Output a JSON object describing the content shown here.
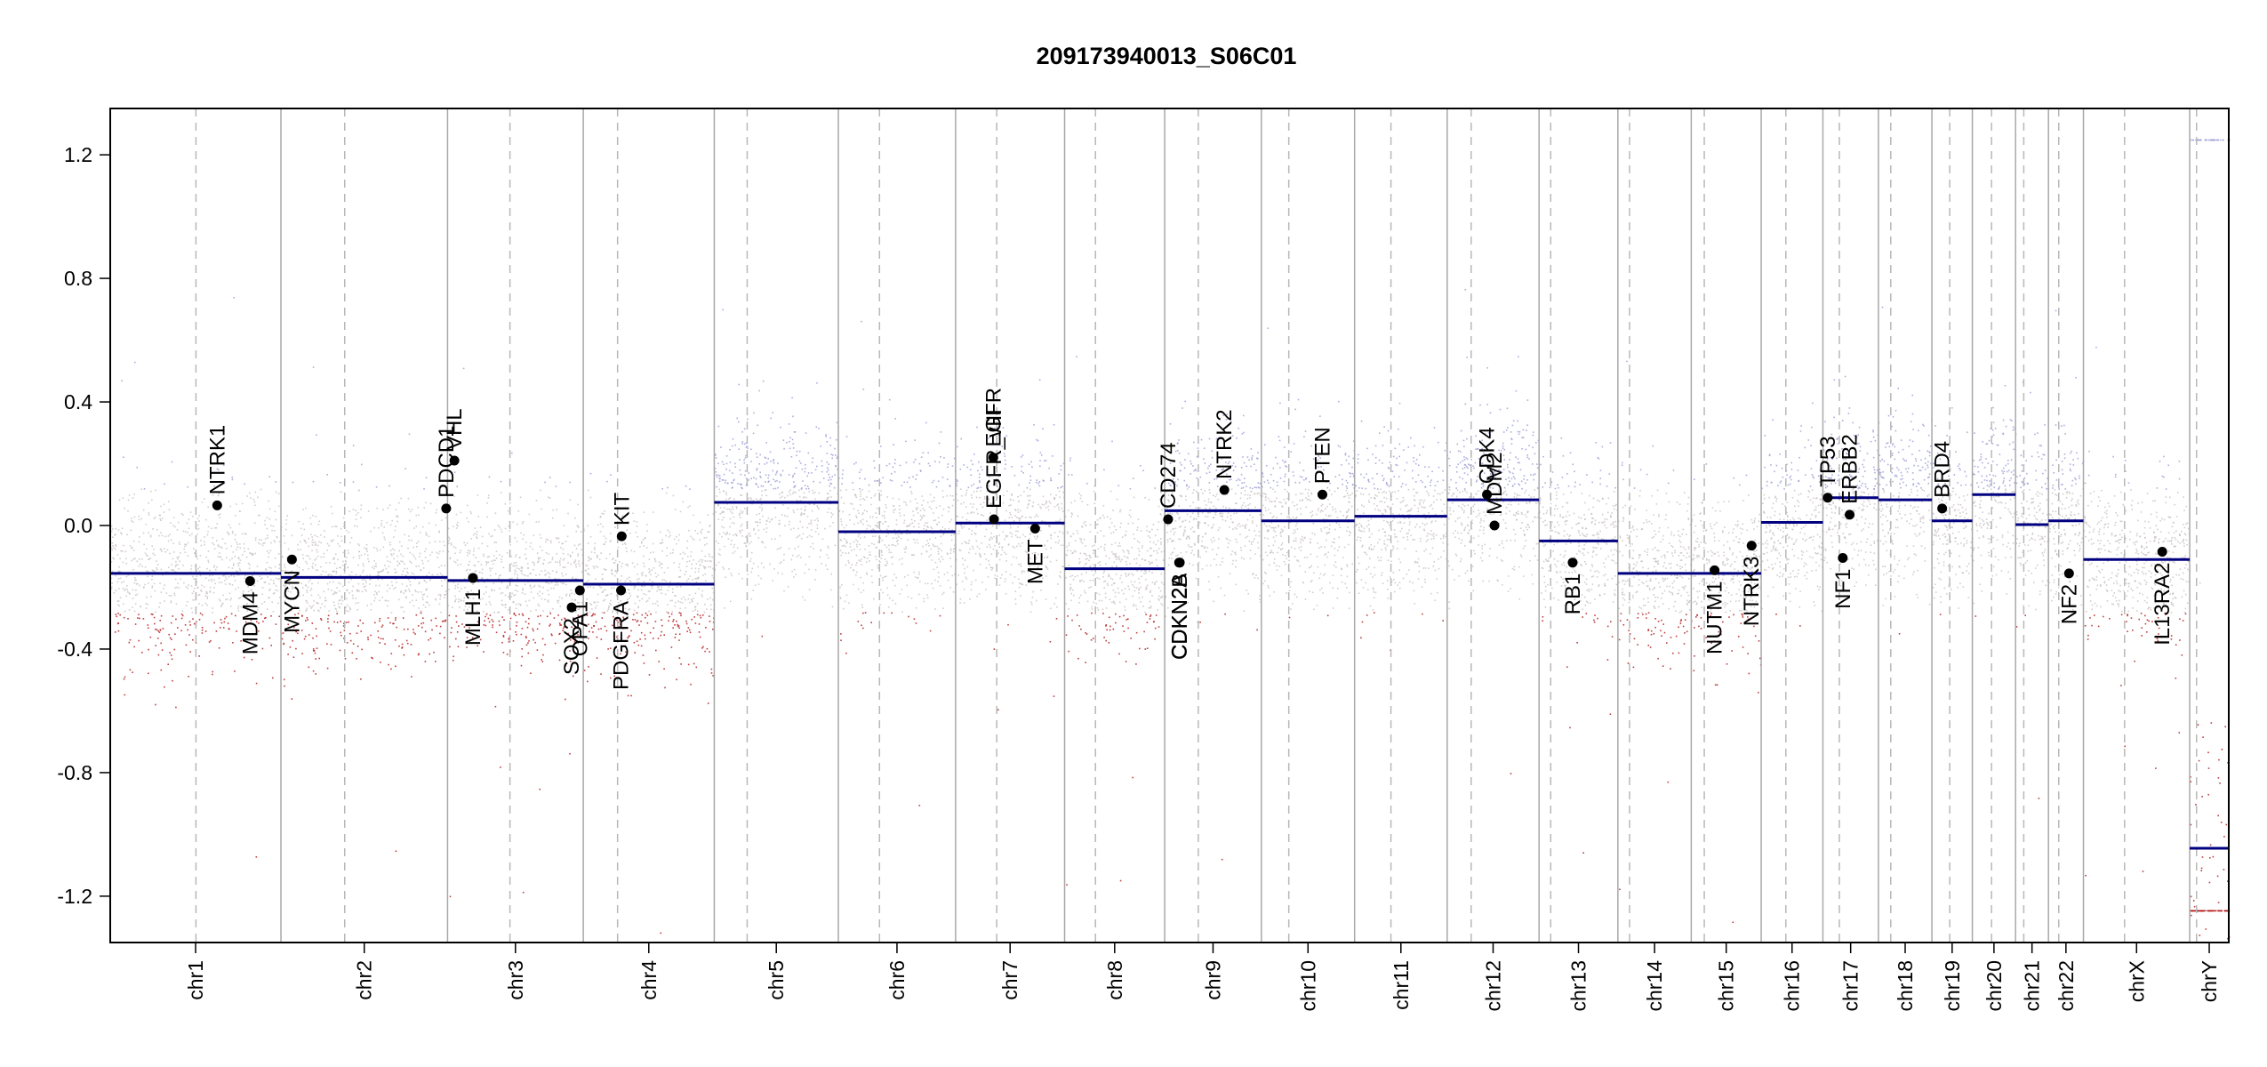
{
  "chart_data": {
    "type": "scatter",
    "title": "209173940013_S06C01",
    "xlabel": "",
    "ylabel": "",
    "ylim": [
      -1.35,
      1.35
    ],
    "yticks": [
      "-1.2",
      "-0.8",
      "-0.4",
      "0.0",
      "0.4",
      "0.8",
      "1.2"
    ],
    "colors": {
      "segment": "#000080",
      "gain_points": "#9a9ad6",
      "loss_points": "#b01010",
      "neutral_points": "#c8c0c0",
      "chr_boundary": "#a8a8a8",
      "centromere": "#b8b8b8",
      "gene_point": "#000000"
    },
    "chromosomes": [
      {
        "name": "chr1",
        "length": 249,
        "centromere": 125,
        "segments": [
          {
            "from": 0,
            "to": 249,
            "value": -0.155
          }
        ]
      },
      {
        "name": "chr2",
        "length": 243,
        "centromere": 93,
        "segments": [
          {
            "from": 0,
            "to": 243,
            "value": -0.168
          }
        ]
      },
      {
        "name": "chr3",
        "length": 198,
        "centromere": 91,
        "segments": [
          {
            "from": 0,
            "to": 198,
            "value": -0.178
          }
        ]
      },
      {
        "name": "chr4",
        "length": 191,
        "centromere": 50,
        "segments": [
          {
            "from": 0,
            "to": 191,
            "value": -0.19
          }
        ]
      },
      {
        "name": "chr5",
        "length": 181,
        "centromere": 48,
        "segments": [
          {
            "from": 0,
            "to": 181,
            "value": 0.075
          }
        ]
      },
      {
        "name": "chr6",
        "length": 171,
        "centromere": 60,
        "segments": [
          {
            "from": 0,
            "to": 171,
            "value": -0.02
          }
        ]
      },
      {
        "name": "chr7",
        "length": 159,
        "centromere": 60,
        "segments": [
          {
            "from": 0,
            "to": 159,
            "value": 0.008
          }
        ]
      },
      {
        "name": "chr8",
        "length": 146,
        "centromere": 45,
        "segments": [
          {
            "from": 0,
            "to": 146,
            "value": -0.14
          }
        ]
      },
      {
        "name": "chr9",
        "length": 141,
        "centromere": 49,
        "segments": [
          {
            "from": 0,
            "to": 141,
            "value": 0.048
          }
        ]
      },
      {
        "name": "chr10",
        "length": 136,
        "centromere": 40,
        "segments": [
          {
            "from": 0,
            "to": 136,
            "value": 0.015
          }
        ]
      },
      {
        "name": "chr11",
        "length": 135,
        "centromere": 53,
        "segments": [
          {
            "from": 0,
            "to": 135,
            "value": 0.03
          }
        ]
      },
      {
        "name": "chr12",
        "length": 134,
        "centromere": 35,
        "segments": [
          {
            "from": 0,
            "to": 134,
            "value": 0.083
          }
        ]
      },
      {
        "name": "chr13",
        "length": 115,
        "centromere": 17,
        "segments": [
          {
            "from": 0,
            "to": 115,
            "value": -0.05
          }
        ]
      },
      {
        "name": "chr14",
        "length": 107,
        "centromere": 17,
        "segments": [
          {
            "from": 0,
            "to": 107,
            "value": -0.155
          }
        ]
      },
      {
        "name": "chr15",
        "length": 102,
        "centromere": 19,
        "segments": [
          {
            "from": 0,
            "to": 102,
            "value": -0.155
          }
        ]
      },
      {
        "name": "chr16",
        "length": 90,
        "centromere": 36,
        "segments": [
          {
            "from": 0,
            "to": 90,
            "value": 0.01
          }
        ]
      },
      {
        "name": "chr17",
        "length": 81,
        "centromere": 24,
        "segments": [
          {
            "from": 0,
            "to": 81,
            "value": 0.09
          }
        ]
      },
      {
        "name": "chr18",
        "length": 78,
        "centromere": 18,
        "segments": [
          {
            "from": 0,
            "to": 78,
            "value": 0.083
          }
        ]
      },
      {
        "name": "chr19",
        "length": 59,
        "centromere": 26,
        "segments": [
          {
            "from": 0,
            "to": 59,
            "value": 0.015
          }
        ]
      },
      {
        "name": "chr20",
        "length": 63,
        "centromere": 28,
        "segments": [
          {
            "from": 0,
            "to": 63,
            "value": 0.1
          }
        ]
      },
      {
        "name": "chr21",
        "length": 48,
        "centromere": 12,
        "segments": [
          {
            "from": 0,
            "to": 48,
            "value": 0.003
          }
        ]
      },
      {
        "name": "chr22",
        "length": 51,
        "centromere": 15,
        "segments": [
          {
            "from": 0,
            "to": 51,
            "value": 0.015
          }
        ]
      },
      {
        "name": "chrX",
        "length": 155,
        "centromere": 60,
        "segments": [
          {
            "from": 0,
            "to": 155,
            "value": -0.11
          }
        ]
      },
      {
        "name": "chrY",
        "length": 57,
        "centromere": 10,
        "segments": [
          {
            "from": 0,
            "to": 57,
            "value": -1.045
          }
        ]
      }
    ],
    "genes": [
      {
        "name": "NTRK1",
        "chr": "chr1",
        "pos": 156,
        "value": 0.065,
        "label": "above"
      },
      {
        "name": "MDM4",
        "chr": "chr1",
        "pos": 204,
        "value": -0.18,
        "label": "below"
      },
      {
        "name": "MYCN",
        "chr": "chr2",
        "pos": 16,
        "value": -0.11,
        "label": "below"
      },
      {
        "name": "PDCD1",
        "chr": "chr2",
        "pos": 241,
        "value": 0.055,
        "label": "above"
      },
      {
        "name": "VHL",
        "chr": "chr3",
        "pos": 10,
        "value": 0.21,
        "label": "above"
      },
      {
        "name": "MLH1",
        "chr": "chr3",
        "pos": 37,
        "value": -0.17,
        "label": "below"
      },
      {
        "name": "SOX2",
        "chr": "chr3",
        "pos": 181,
        "value": -0.265,
        "label": "below"
      },
      {
        "name": "OPA1",
        "chr": "chr3",
        "pos": 193,
        "value": -0.21,
        "label": "below"
      },
      {
        "name": "PDGFRA",
        "chr": "chr4",
        "pos": 55,
        "value": -0.21,
        "label": "below"
      },
      {
        "name": "KIT",
        "chr": "chr4",
        "pos": 56,
        "value": -0.035,
        "label": "above"
      },
      {
        "name": "EGFR",
        "chr": "chr7",
        "pos": 55,
        "value": 0.22,
        "label": "above"
      },
      {
        "name": "EGFR_vIII",
        "chr": "chr7",
        "pos": 56,
        "value": 0.02,
        "label": "above"
      },
      {
        "name": "MET",
        "chr": "chr7",
        "pos": 116,
        "value": -0.01,
        "label": "below"
      },
      {
        "name": "CD274",
        "chr": "chr9",
        "pos": 5,
        "value": 0.02,
        "label": "above"
      },
      {
        "name": "CDKN2A",
        "chr": "chr9",
        "pos": 21,
        "value": -0.12,
        "label": "below"
      },
      {
        "name": "CDKN2B",
        "chr": "chr9",
        "pos": 22,
        "value": -0.12,
        "label": "below"
      },
      {
        "name": "NTRK2",
        "chr": "chr9",
        "pos": 87,
        "value": 0.115,
        "label": "above"
      },
      {
        "name": "PTEN",
        "chr": "chr10",
        "pos": 89,
        "value": 0.1,
        "label": "above"
      },
      {
        "name": "CDK4",
        "chr": "chr12",
        "pos": 58,
        "value": 0.1,
        "label": "above"
      },
      {
        "name": "MDM2",
        "chr": "chr12",
        "pos": 69,
        "value": 0.0,
        "label": "above"
      },
      {
        "name": "RB1",
        "chr": "chr13",
        "pos": 49,
        "value": -0.12,
        "label": "below"
      },
      {
        "name": "NUTM1",
        "chr": "chr15",
        "pos": 34,
        "value": -0.145,
        "label": "below"
      },
      {
        "name": "NTRK3",
        "chr": "chr15",
        "pos": 88,
        "value": -0.065,
        "label": "below"
      },
      {
        "name": "TP53",
        "chr": "chr17",
        "pos": 7,
        "value": 0.09,
        "label": "above"
      },
      {
        "name": "NF1",
        "chr": "chr17",
        "pos": 29,
        "value": -0.105,
        "label": "below"
      },
      {
        "name": "ERBB2",
        "chr": "chr17",
        "pos": 39,
        "value": 0.035,
        "label": "above"
      },
      {
        "name": "BRD4",
        "chr": "chr19",
        "pos": 15,
        "value": 0.055,
        "label": "above"
      },
      {
        "name": "NF2",
        "chr": "chr22",
        "pos": 30,
        "value": -0.155,
        "label": "below"
      },
      {
        "name": "IL13RA2",
        "chr": "chrX",
        "pos": 115,
        "value": -0.085,
        "label": "below"
      }
    ]
  }
}
